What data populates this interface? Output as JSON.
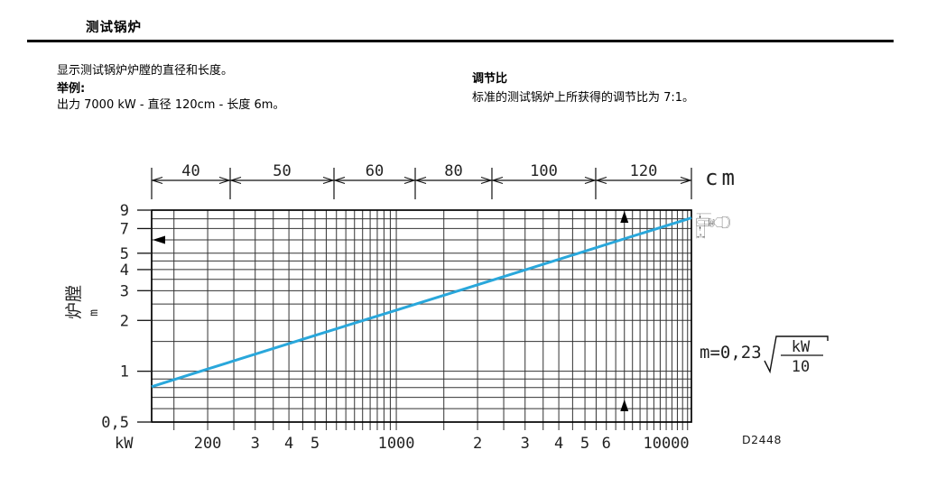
{
  "page": {
    "title": "测试锅炉",
    "intro": "显示测试锅炉炉膛的直径和长度。",
    "example_label": "举例:",
    "example_text": "出力 7000 kW - 直径 120cm - 长度 6m。",
    "turndown": {
      "heading": "调节比",
      "body": "标准的测试锅炉上所获得的调节比为 7:1。"
    },
    "figure_code": "D2448"
  },
  "chart_data": {
    "type": "line",
    "title": "",
    "x_axis": {
      "label": "kW",
      "scale": "log",
      "min": 124,
      "max": 12400,
      "tick_labels": [
        {
          "value": 200,
          "label": "200"
        },
        {
          "value": 300,
          "label": "3"
        },
        {
          "value": 400,
          "label": "4"
        },
        {
          "value": 500,
          "label": "5"
        },
        {
          "value": 1000,
          "label": "1000"
        },
        {
          "value": 2000,
          "label": "2"
        },
        {
          "value": 3000,
          "label": "3"
        },
        {
          "value": 4000,
          "label": "4"
        },
        {
          "value": 5000,
          "label": "5"
        },
        {
          "value": 6000,
          "label": "6"
        },
        {
          "value": 10000,
          "label": "10000"
        }
      ],
      "gridlines": [
        150,
        200,
        250,
        300,
        350,
        400,
        450,
        500,
        550,
        600,
        650,
        700,
        750,
        800,
        850,
        900,
        950,
        1000,
        1500,
        2000,
        2500,
        3000,
        3500,
        4000,
        4500,
        5000,
        5500,
        6000,
        6500,
        7000,
        7500,
        8000,
        8500,
        9000,
        9500,
        10000,
        10500,
        11000,
        11500,
        12000
      ]
    },
    "y_axis": {
      "label": "炉膛",
      "unit": "m",
      "scale": "log",
      "min": 0.5,
      "max": 9,
      "tick_labels": [
        {
          "value": 9,
          "label": "9"
        },
        {
          "value": 7,
          "label": "7"
        },
        {
          "value": 5,
          "label": "5"
        },
        {
          "value": 4,
          "label": "4"
        },
        {
          "value": 3,
          "label": "3"
        },
        {
          "value": 2,
          "label": "2"
        },
        {
          "value": 1,
          "label": "1"
        },
        {
          "value": 0.5,
          "label": "0,5"
        }
      ],
      "gridlines": [
        0.6,
        0.7,
        0.8,
        0.9,
        1,
        1.5,
        2,
        2.5,
        3,
        3.5,
        4,
        4.5,
        5,
        6,
        7,
        8
      ]
    },
    "top_scale": {
      "unit": "cm",
      "segment_labels": [
        "40",
        "50",
        "60",
        "80",
        "100",
        "120"
      ],
      "boundaries_frac": [
        0,
        0.1455,
        0.3378,
        0.4883,
        0.6304,
        0.8227,
        1
      ]
    },
    "series": [
      {
        "name": "m=0,23 sqrt(kW/10)",
        "color": "#29A7DB",
        "points": [
          {
            "kW": 124,
            "m": 0.81
          },
          {
            "kW": 200,
            "m": 1.03
          },
          {
            "kW": 500,
            "m": 1.63
          },
          {
            "kW": 1000,
            "m": 2.3
          },
          {
            "kW": 2000,
            "m": 3.25
          },
          {
            "kW": 5000,
            "m": 5.14
          },
          {
            "kW": 7000,
            "m": 6.09
          },
          {
            "kW": 10000,
            "m": 7.27
          },
          {
            "kW": 12400,
            "m": 8.1
          }
        ]
      }
    ],
    "example_markers": {
      "kW": 7000,
      "length_m": 6,
      "diameter_cm": 120
    }
  },
  "formula": {
    "prefix": "m=0,23",
    "numerator": "kW",
    "denominator": "10"
  },
  "illustration": {
    "dim_label": "m"
  }
}
